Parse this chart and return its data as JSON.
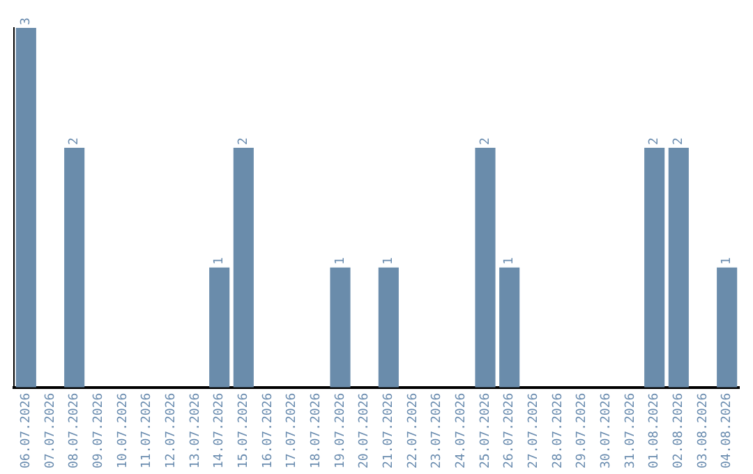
{
  "chart_data": {
    "type": "bar",
    "categories": [
      "06.07.2026",
      "07.07.2026",
      "08.07.2026",
      "09.07.2026",
      "10.07.2026",
      "11.07.2026",
      "12.07.2026",
      "13.07.2026",
      "14.07.2026",
      "15.07.2026",
      "16.07.2026",
      "17.07.2026",
      "18.07.2026",
      "19.07.2026",
      "20.07.2026",
      "21.07.2026",
      "22.07.2026",
      "23.07.2026",
      "24.07.2026",
      "25.07.2026",
      "26.07.2026",
      "27.07.2026",
      "28.07.2026",
      "29.07.2026",
      "30.07.2026",
      "31.07.2026",
      "01.08.2026",
      "02.08.2026",
      "03.08.2026",
      "04.08.2026"
    ],
    "values": [
      3,
      0,
      2,
      0,
      0,
      0,
      0,
      0,
      1,
      2,
      0,
      0,
      0,
      1,
      0,
      1,
      0,
      0,
      0,
      2,
      1,
      0,
      0,
      0,
      0,
      0,
      2,
      2,
      0,
      1
    ],
    "value_labels": [
      "3",
      null,
      "2",
      null,
      null,
      null,
      null,
      null,
      "1",
      "2",
      null,
      null,
      null,
      "1",
      null,
      "1",
      null,
      null,
      null,
      "2",
      "1",
      null,
      null,
      null,
      null,
      null,
      "2",
      "2",
      null,
      "1"
    ],
    "color": "#6a8cab",
    "ylim": [
      0,
      3
    ],
    "tick_labels": "x",
    "grid": false,
    "legend": false
  }
}
